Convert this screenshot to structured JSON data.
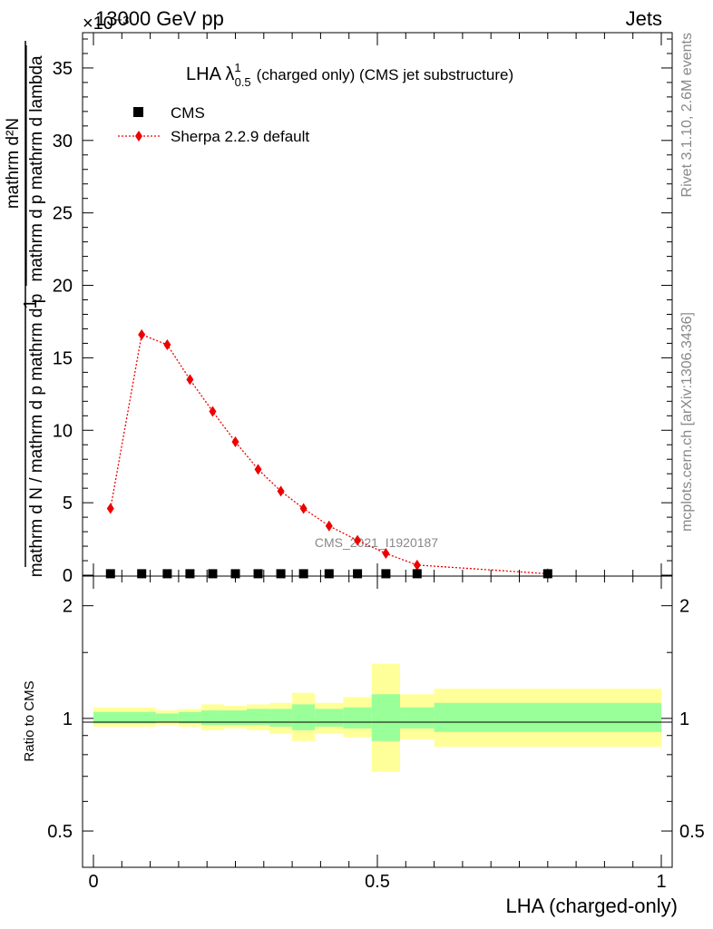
{
  "header": {
    "left": "13000 GeV pp",
    "right": "Jets",
    "exponent": "×10⁻³"
  },
  "side": {
    "rivet": "Rivet 3.1.10,  2.6M events",
    "mcplots": "mcplots.cern.ch [arXiv:1306.3436]"
  },
  "top_panel": {
    "title_main": "LHA λ",
    "title_sup": "1",
    "title_sub": "0.5",
    "title_rest": "(charged only) (CMS jet substructure)",
    "ylabel_numer": "mathrm d²N",
    "ylabel_denom": "mathrm d p  mathrm d lambda",
    "ylabel_prefix_numer": "1",
    "ylabel_prefix_denom": "mathrm d N / mathrm d p  mathrm d p",
    "watermark": "CMS_2021_I1920187",
    "legend": [
      {
        "label": "CMS"
      },
      {
        "label": "Sherpa 2.2.9 default"
      }
    ],
    "yticks": [
      "0",
      "5",
      "10",
      "15",
      "20",
      "25",
      "30",
      "35"
    ]
  },
  "bottom_panel": {
    "ylabel": "Ratio to CMS",
    "yticks_left": [
      "0.5",
      "1",
      "2"
    ],
    "yticks_right": [
      "0.5",
      "1",
      "2"
    ]
  },
  "xaxis": {
    "label": "LHA (charged-only)",
    "ticks": [
      "0",
      "0.5",
      "1"
    ]
  },
  "colors": {
    "mc": "#ee0000",
    "data": "#000000",
    "band_inner": "#99ff99",
    "band_outer": "#ffff99"
  },
  "chart_data": {
    "type": "line",
    "x_range": [
      0,
      1
    ],
    "y_range": [
      0,
      37.5
    ],
    "y_scale_factor": "1e-3",
    "bins": [
      0.0,
      0.06,
      0.11,
      0.15,
      0.19,
      0.23,
      0.27,
      0.31,
      0.35,
      0.39,
      0.44,
      0.49,
      0.54,
      0.6,
      1.0
    ],
    "series": [
      {
        "name": "CMS",
        "x": [
          0.03,
          0.085,
          0.13,
          0.17,
          0.21,
          0.25,
          0.29,
          0.33,
          0.37,
          0.415,
          0.465,
          0.515,
          0.57,
          0.8
        ],
        "values": [
          0.1,
          0.1,
          0.1,
          0.1,
          0.1,
          0.1,
          0.1,
          0.1,
          0.1,
          0.1,
          0.1,
          0.1,
          0.1,
          0.1
        ]
      },
      {
        "name": "Sherpa 2.2.9 default",
        "x": [
          0.03,
          0.085,
          0.13,
          0.17,
          0.21,
          0.25,
          0.29,
          0.33,
          0.37,
          0.415,
          0.465,
          0.515,
          0.57,
          0.8
        ],
        "values": [
          4.6,
          16.6,
          15.9,
          13.5,
          11.3,
          9.2,
          7.3,
          5.8,
          4.6,
          3.4,
          2.4,
          1.5,
          0.7,
          0.1
        ]
      }
    ],
    "ratio": {
      "ylabel": "Ratio to CMS",
      "y_range": [
        0.4,
        2.4
      ],
      "log": true,
      "bands": [
        {
          "lo": 0.0,
          "hi": 0.11,
          "inner": [
            0.97,
            1.04
          ],
          "outer": [
            0.95,
            1.07
          ]
        },
        {
          "lo": 0.11,
          "hi": 0.15,
          "inner": [
            0.98,
            1.03
          ],
          "outer": [
            0.96,
            1.05
          ]
        },
        {
          "lo": 0.15,
          "hi": 0.19,
          "inner": [
            0.97,
            1.04
          ],
          "outer": [
            0.95,
            1.06
          ]
        },
        {
          "lo": 0.19,
          "hi": 0.23,
          "inner": [
            0.96,
            1.05
          ],
          "outer": [
            0.93,
            1.09
          ]
        },
        {
          "lo": 0.23,
          "hi": 0.27,
          "inner": [
            0.96,
            1.05
          ],
          "outer": [
            0.94,
            1.08
          ]
        },
        {
          "lo": 0.27,
          "hi": 0.31,
          "inner": [
            0.96,
            1.06
          ],
          "outer": [
            0.93,
            1.09
          ]
        },
        {
          "lo": 0.31,
          "hi": 0.35,
          "inner": [
            0.95,
            1.06
          ],
          "outer": [
            0.91,
            1.1
          ]
        },
        {
          "lo": 0.35,
          "hi": 0.39,
          "inner": [
            0.93,
            1.09
          ],
          "outer": [
            0.87,
            1.17
          ]
        },
        {
          "lo": 0.39,
          "hi": 0.44,
          "inner": [
            0.95,
            1.06
          ],
          "outer": [
            0.91,
            1.1
          ]
        },
        {
          "lo": 0.44,
          "hi": 0.49,
          "inner": [
            0.94,
            1.07
          ],
          "outer": [
            0.89,
            1.14
          ]
        },
        {
          "lo": 0.49,
          "hi": 0.54,
          "inner": [
            0.87,
            1.16
          ],
          "outer": [
            0.72,
            1.4
          ]
        },
        {
          "lo": 0.54,
          "hi": 0.6,
          "inner": [
            0.94,
            1.07
          ],
          "outer": [
            0.88,
            1.16
          ]
        },
        {
          "lo": 0.6,
          "hi": 1.0,
          "inner": [
            0.92,
            1.1
          ],
          "outer": [
            0.84,
            1.2
          ]
        }
      ]
    }
  }
}
